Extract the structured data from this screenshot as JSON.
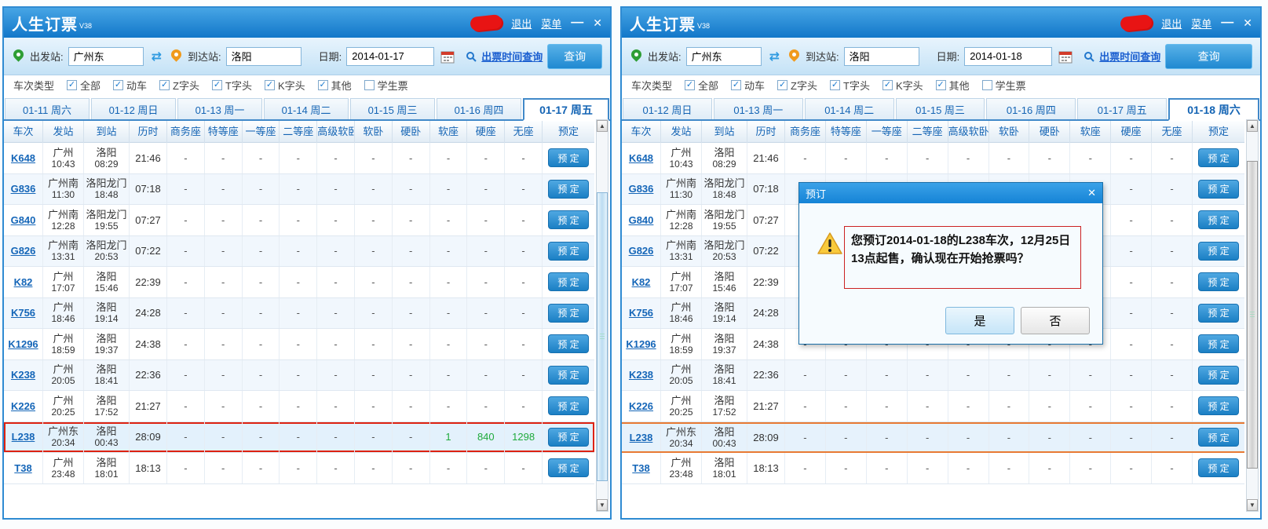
{
  "app": {
    "title": "人生订票",
    "version": "V38",
    "logout": "退出",
    "menu": "菜单",
    "minimize": "—",
    "close": "✕"
  },
  "icons": {
    "swap": "⇄",
    "scroll_up": "▲",
    "scroll_down": "▼"
  },
  "search": {
    "from_label": "出发站:",
    "from_value": "广州东",
    "to_label": "到达站:",
    "to_value": "洛阳",
    "date_label": "日期:",
    "ticket_time_link": "出票时间查询",
    "query_button": "查询"
  },
  "filters": {
    "label": "车次类型",
    "options": [
      {
        "label": "全部",
        "checked": true
      },
      {
        "label": "动车",
        "checked": true
      },
      {
        "label": "Z字头",
        "checked": true
      },
      {
        "label": "T字头",
        "checked": true
      },
      {
        "label": "K字头",
        "checked": true
      },
      {
        "label": "其他",
        "checked": true
      },
      {
        "label": "学生票",
        "checked": false
      }
    ]
  },
  "table": {
    "headers": [
      "车次",
      "发站",
      "到站",
      "历时",
      "商务座",
      "特等座",
      "一等座",
      "二等座",
      "高级软卧",
      "软卧",
      "硬卧",
      "软座",
      "硬座",
      "无座",
      "预定"
    ],
    "book_button": "预 定"
  },
  "windows": [
    {
      "date": "2014-01-17",
      "tabs": [
        "01-11 周六",
        "01-12 周日",
        "01-13 周一",
        "01-14 周二",
        "01-15 周三",
        "01-16 周四",
        "01-17 周五"
      ],
      "active_tab": 6,
      "rows": [
        {
          "train": "K648",
          "from": "广州",
          "from_time": "10:43",
          "to": "洛阳",
          "to_time": "08:29",
          "duration": "21:46",
          "seats": [
            "-",
            "-",
            "-",
            "-",
            "-",
            "-",
            "-",
            "-",
            "-",
            "-"
          ],
          "highlight": ""
        },
        {
          "train": "G836",
          "from": "广州南",
          "from_time": "11:30",
          "to": "洛阳龙门",
          "to_time": "18:48",
          "duration": "07:18",
          "seats": [
            "-",
            "-",
            "-",
            "-",
            "-",
            "-",
            "-",
            "-",
            "-",
            "-"
          ],
          "highlight": ""
        },
        {
          "train": "G840",
          "from": "广州南",
          "from_time": "12:28",
          "to": "洛阳龙门",
          "to_time": "19:55",
          "duration": "07:27",
          "seats": [
            "-",
            "-",
            "-",
            "-",
            "-",
            "-",
            "-",
            "-",
            "-",
            "-"
          ],
          "highlight": ""
        },
        {
          "train": "G826",
          "from": "广州南",
          "from_time": "13:31",
          "to": "洛阳龙门",
          "to_time": "20:53",
          "duration": "07:22",
          "seats": [
            "-",
            "-",
            "-",
            "-",
            "-",
            "-",
            "-",
            "-",
            "-",
            "-"
          ],
          "highlight": ""
        },
        {
          "train": "K82",
          "from": "广州",
          "from_time": "17:07",
          "to": "洛阳",
          "to_time": "15:46",
          "duration": "22:39",
          "seats": [
            "-",
            "-",
            "-",
            "-",
            "-",
            "-",
            "-",
            "-",
            "-",
            "-"
          ],
          "highlight": ""
        },
        {
          "train": "K756",
          "from": "广州",
          "from_time": "18:46",
          "to": "洛阳",
          "to_time": "19:14",
          "duration": "24:28",
          "seats": [
            "-",
            "-",
            "-",
            "-",
            "-",
            "-",
            "-",
            "-",
            "-",
            "-"
          ],
          "highlight": ""
        },
        {
          "train": "K1296",
          "from": "广州",
          "from_time": "18:59",
          "to": "洛阳",
          "to_time": "19:37",
          "duration": "24:38",
          "seats": [
            "-",
            "-",
            "-",
            "-",
            "-",
            "-",
            "-",
            "-",
            "-",
            "-"
          ],
          "highlight": ""
        },
        {
          "train": "K238",
          "from": "广州",
          "from_time": "20:05",
          "to": "洛阳",
          "to_time": "18:41",
          "duration": "22:36",
          "seats": [
            "-",
            "-",
            "-",
            "-",
            "-",
            "-",
            "-",
            "-",
            "-",
            "-"
          ],
          "highlight": ""
        },
        {
          "train": "K226",
          "from": "广州",
          "from_time": "20:25",
          "to": "洛阳",
          "to_time": "17:52",
          "duration": "21:27",
          "seats": [
            "-",
            "-",
            "-",
            "-",
            "-",
            "-",
            "-",
            "-",
            "-",
            "-"
          ],
          "highlight": ""
        },
        {
          "train": "L238",
          "from": "广州东",
          "from_time": "20:34",
          "to": "洛阳",
          "to_time": "00:43",
          "duration": "28:09",
          "seats": [
            "-",
            "-",
            "-",
            "-",
            "-",
            "-",
            "-",
            "1",
            "840",
            "1298"
          ],
          "highlight": "red-box"
        },
        {
          "train": "T38",
          "from": "广州",
          "from_time": "23:48",
          "to": "洛阳",
          "to_time": "18:01",
          "duration": "18:13",
          "seats": [
            "-",
            "-",
            "-",
            "-",
            "-",
            "-",
            "-",
            "-",
            "-",
            "-"
          ],
          "highlight": ""
        }
      ]
    },
    {
      "date": "2014-01-18",
      "tabs": [
        "01-12 周日",
        "01-13 周一",
        "01-14 周二",
        "01-15 周三",
        "01-16 周四",
        "01-17 周五",
        "01-18 周六"
      ],
      "active_tab": 6,
      "rows": [
        {
          "train": "K648",
          "from": "广州",
          "from_time": "10:43",
          "to": "洛阳",
          "to_time": "08:29",
          "duration": "21:46",
          "seats": [
            "-",
            "-",
            "-",
            "-",
            "-",
            "-",
            "-",
            "-",
            "-",
            "-"
          ],
          "highlight": ""
        },
        {
          "train": "G836",
          "from": "广州南",
          "from_time": "11:30",
          "to": "洛阳龙门",
          "to_time": "18:48",
          "duration": "07:18",
          "seats": [
            "-",
            "-",
            "-",
            "-",
            "-",
            "-",
            "-",
            "-",
            "-",
            "-"
          ],
          "highlight": ""
        },
        {
          "train": "G840",
          "from": "广州南",
          "from_time": "12:28",
          "to": "洛阳龙门",
          "to_time": "19:55",
          "duration": "07:27",
          "seats": [
            "-",
            "-",
            "-",
            "-",
            "-",
            "-",
            "-",
            "-",
            "-",
            "-"
          ],
          "highlight": ""
        },
        {
          "train": "G826",
          "from": "广州南",
          "from_time": "13:31",
          "to": "洛阳龙门",
          "to_time": "20:53",
          "duration": "07:22",
          "seats": [
            "-",
            "-",
            "-",
            "-",
            "-",
            "-",
            "-",
            "-",
            "-",
            "-"
          ],
          "highlight": ""
        },
        {
          "train": "K82",
          "from": "广州",
          "from_time": "17:07",
          "to": "洛阳",
          "to_time": "15:46",
          "duration": "22:39",
          "seats": [
            "-",
            "-",
            "-",
            "-",
            "-",
            "-",
            "-",
            "-",
            "-",
            "-"
          ],
          "highlight": ""
        },
        {
          "train": "K756",
          "from": "广州",
          "from_time": "18:46",
          "to": "洛阳",
          "to_time": "19:14",
          "duration": "24:28",
          "seats": [
            "-",
            "-",
            "-",
            "-",
            "-",
            "-",
            "-",
            "-",
            "-",
            "-"
          ],
          "highlight": ""
        },
        {
          "train": "K1296",
          "from": "广州",
          "from_time": "18:59",
          "to": "洛阳",
          "to_time": "19:37",
          "duration": "24:38",
          "seats": [
            "-",
            "-",
            "-",
            "-",
            "-",
            "-",
            "-",
            "-",
            "-",
            "-"
          ],
          "highlight": ""
        },
        {
          "train": "K238",
          "from": "广州",
          "from_time": "20:05",
          "to": "洛阳",
          "to_time": "18:41",
          "duration": "22:36",
          "seats": [
            "-",
            "-",
            "-",
            "-",
            "-",
            "-",
            "-",
            "-",
            "-",
            "-"
          ],
          "highlight": ""
        },
        {
          "train": "K226",
          "from": "广州",
          "from_time": "20:25",
          "to": "洛阳",
          "to_time": "17:52",
          "duration": "21:27",
          "seats": [
            "-",
            "-",
            "-",
            "-",
            "-",
            "-",
            "-",
            "-",
            "-",
            "-"
          ],
          "highlight": ""
        },
        {
          "train": "L238",
          "from": "广州东",
          "from_time": "20:34",
          "to": "洛阳",
          "to_time": "00:43",
          "duration": "28:09",
          "seats": [
            "-",
            "-",
            "-",
            "-",
            "-",
            "-",
            "-",
            "-",
            "-",
            "-"
          ],
          "highlight": "orange-lines"
        },
        {
          "train": "T38",
          "from": "广州",
          "from_time": "23:48",
          "to": "洛阳",
          "to_time": "18:01",
          "duration": "18:13",
          "seats": [
            "-",
            "-",
            "-",
            "-",
            "-",
            "-",
            "-",
            "-",
            "-",
            "-"
          ],
          "highlight": ""
        }
      ]
    }
  ],
  "dialog": {
    "title": "预订",
    "close": "✕",
    "message": "您预订2014-01-18的L238车次，12月25日13点起售，确认现在开始抢票吗？",
    "yes_button": "是",
    "no_button": "否"
  },
  "colors": {
    "accent": "#1277c9",
    "link": "#1b5fd0",
    "available_green": "#1faa3c",
    "highlight_red": "#dd2211",
    "highlight_orange": "#e87a33"
  }
}
